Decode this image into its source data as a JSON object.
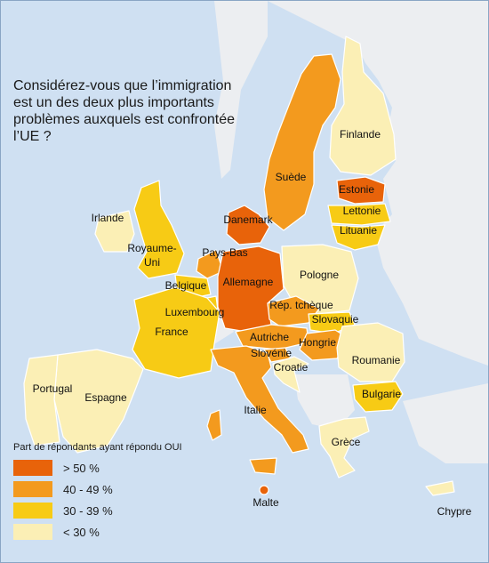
{
  "title": "Considérez-vous que l’immigration est un des deux plus importants problèmes auxquels est confrontée l’UE ?",
  "legend": {
    "title": "Part de répondants ayant répondu OUI",
    "items": [
      {
        "label": "> 50 %",
        "color": "#e8630a"
      },
      {
        "label": "40 - 49 %",
        "color": "#f39a1e"
      },
      {
        "label": "30 - 39 %",
        "color": "#f7cb15"
      },
      {
        "label": "< 30 %",
        "color": "#fbefb5"
      }
    ]
  },
  "colors": {
    "sea": "#cfe0f2",
    "non_eu": "#eceef1",
    "border": "#ffffff"
  },
  "countries": {
    "estonie": {
      "label": "Estonie",
      "class": "> 50 %"
    },
    "allemagne": {
      "label": "Allemagne",
      "class": "> 50 %"
    },
    "danemark": {
      "label": "Danemark",
      "class": "> 50 %"
    },
    "malte": {
      "label": "Malte",
      "class": "> 50 %"
    },
    "suede": {
      "label": "Suède",
      "class": "40 - 49 %"
    },
    "italie": {
      "label": "Italie",
      "class": "40 - 49 %"
    },
    "hongrie": {
      "label": "Hongrie",
      "class": "40 - 49 %"
    },
    "autriche": {
      "label": "Autriche",
      "class": "40 - 49 %"
    },
    "rep_tcheque": {
      "label": "Rép. tchèque",
      "class": "40 - 49 %"
    },
    "pays_bas": {
      "label": "Pays-Bas",
      "class": "40 - 49 %"
    },
    "slovenie": {
      "label": "Slovénie",
      "class": "40 - 49 %"
    },
    "royaume_uni": {
      "label": "Royaume-Uni",
      "class": "30 - 39 %"
    },
    "france": {
      "label": "France",
      "class": "30 - 39 %"
    },
    "belgique": {
      "label": "Belgique",
      "class": "30 - 39 %"
    },
    "luxembourg": {
      "label": "Luxembourg",
      "class": "30 - 39 %"
    },
    "lettonie": {
      "label": "Lettonie",
      "class": "30 - 39 %"
    },
    "lituanie": {
      "label": "Lituanie",
      "class": "30 - 39 %"
    },
    "slovaquie": {
      "label": "Slovaquie",
      "class": "30 - 39 %"
    },
    "bulgarie": {
      "label": "Bulgarie",
      "class": "30 - 39 %"
    },
    "finlande": {
      "label": "Finlande",
      "class": "< 30 %"
    },
    "irlande": {
      "label": "Irlande",
      "class": "< 30 %"
    },
    "pologne": {
      "label": "Pologne",
      "class": "< 30 %"
    },
    "roumanie": {
      "label": "Roumanie",
      "class": "< 30 %"
    },
    "portugal": {
      "label": "Portugal",
      "class": "< 30 %"
    },
    "espagne": {
      "label": "Espagne",
      "class": "< 30 %"
    },
    "croatie": {
      "label": "Croatie",
      "class": "< 30 %"
    },
    "grece": {
      "label": "Grèce",
      "class": "< 30 %"
    },
    "chypre": {
      "label": "Chypre",
      "class": "< 30 %"
    }
  }
}
